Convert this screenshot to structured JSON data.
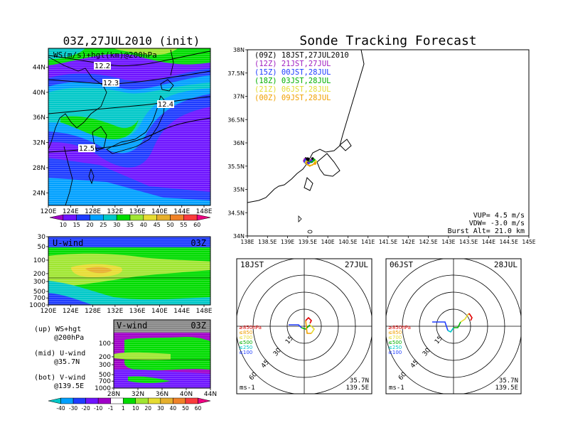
{
  "chart_data": [
    {
      "type": "heatmap",
      "panel": "ws-hgt-200hPa",
      "title": "03Z,27JUL2010 (init)",
      "label": "WS(m/s)+hgt(km)@200hPa",
      "x_ticks": [
        "120E",
        "124E",
        "128E",
        "132E",
        "136E",
        "140E",
        "144E",
        "148E"
      ],
      "y_ticks": [
        "24N",
        "28N",
        "32N",
        "36N",
        "40N",
        "44N"
      ],
      "xlim": [
        120,
        150
      ],
      "ylim": [
        22,
        47
      ],
      "contour_labels": [
        "12.2",
        "12.3",
        "12.4",
        "12.5"
      ],
      "colorbar_levels": [
        "10",
        "15",
        "20",
        "25",
        "30",
        "35",
        "40",
        "45",
        "50",
        "55",
        "60"
      ]
    },
    {
      "type": "heatmap",
      "panel": "u-wind-section",
      "label": "U-wind",
      "time": "03Z",
      "x_ticks": [
        "120E",
        "124E",
        "128E",
        "132E",
        "136E",
        "140E",
        "144E",
        "148E"
      ],
      "y_ticks": [
        "30",
        "50",
        "100",
        "200",
        "300",
        "500",
        "700",
        "1000"
      ]
    },
    {
      "type": "heatmap",
      "panel": "v-wind-section",
      "label": "V-wind",
      "time": "03Z",
      "x_ticks": [
        "28N",
        "32N",
        "36N",
        "40N",
        "44N"
      ],
      "y_ticks": [
        "100",
        "200",
        "300",
        "500",
        "700",
        "1000"
      ],
      "colorbar_levels": [
        "-40",
        "-30",
        "-20",
        "-10",
        "-1",
        "1",
        "10",
        "20",
        "30",
        "40",
        "50",
        "60"
      ]
    },
    {
      "type": "line",
      "panel": "sonde-tracking-map",
      "title": "Sonde Tracking Forecast",
      "x_ticks": [
        "138E",
        "138.5E",
        "139E",
        "139.5E",
        "140E",
        "140.5E",
        "141E",
        "141.5E",
        "142E",
        "142.5E",
        "143E",
        "143.5E",
        "144E",
        "144.5E",
        "145E"
      ],
      "y_ticks": [
        "34N",
        "34.5N",
        "35N",
        "35.5N",
        "36N",
        "36.5N",
        "37N",
        "37.5N",
        "38N"
      ],
      "xlim": [
        138,
        145
      ],
      "ylim": [
        34,
        38
      ],
      "series": [
        {
          "name": "(09Z) 18JST,27JUL2010",
          "color": "#000000",
          "x": [
            139.5,
            139.45,
            139.4,
            139.45,
            139.55,
            139.62
          ],
          "y": [
            35.65,
            35.68,
            35.62,
            35.56,
            35.58,
            35.66
          ]
        },
        {
          "name": "(12Z) 21JST,27JUL",
          "color": "#a020c0",
          "x": [
            139.5,
            139.42,
            139.4,
            139.5,
            139.58
          ],
          "y": [
            35.65,
            35.66,
            35.6,
            35.56,
            35.62
          ]
        },
        {
          "name": "(15Z) 00JST,28JUL",
          "color": "#1e3cff",
          "x": [
            139.5,
            139.44,
            139.42,
            139.52,
            139.6
          ],
          "y": [
            35.65,
            35.64,
            35.58,
            35.55,
            35.6
          ]
        },
        {
          "name": "(18Z) 03JST,28JUL",
          "color": "#00b000",
          "x": [
            139.5,
            139.55,
            139.6,
            139.66
          ],
          "y": [
            35.65,
            35.6,
            35.58,
            35.63
          ]
        },
        {
          "name": "(21Z) 06JST,28JUL",
          "color": "#e6dc32",
          "x": [
            139.5,
            139.44,
            139.5,
            139.62,
            139.7
          ],
          "y": [
            35.65,
            35.58,
            35.52,
            35.52,
            35.6
          ]
        },
        {
          "name": "(00Z) 09JST,28JUL",
          "color": "#f0a000",
          "x": [
            139.5,
            139.46,
            139.55,
            139.68
          ],
          "y": [
            35.65,
            35.56,
            35.5,
            35.56
          ]
        }
      ]
    },
    {
      "type": "line",
      "panel": "hodograph-left",
      "time": "18JST",
      "date": "27JUL",
      "rings": [
        "15",
        "30",
        "45",
        "60"
      ],
      "layers": [
        "≥850hPa",
        "≤850",
        "≤700",
        "≤500",
        "≤250",
        "≤100"
      ],
      "layer_colors": [
        "#e00000",
        "#f0a000",
        "#e6dc32",
        "#00b000",
        "#00c8c8",
        "#1e3cff"
      ],
      "units": "ms-1",
      "location_lat": "35.7N",
      "location_lon": "139.5E"
    },
    {
      "type": "line",
      "panel": "hodograph-right",
      "time": "06JST",
      "date": "28JUL",
      "rings": [
        "15",
        "30",
        "45",
        "60"
      ],
      "layers": [
        "≥850hPa",
        "≤850",
        "≤700",
        "≤500",
        "≤250",
        "≤100"
      ],
      "layer_colors": [
        "#e00000",
        "#f0a000",
        "#e6dc32",
        "#00b000",
        "#00c8c8",
        "#1e3cff"
      ],
      "units": "ms-1",
      "location_lat": "35.7N",
      "location_lon": "139.5E"
    }
  ],
  "map_info": {
    "vup": "VUP= 4.5 m/s",
    "vdw": "VDW= -3.0 m/s",
    "burst": "Burst Alt= 21.0 km"
  },
  "side_legend": {
    "up": "(up) WS+hgt",
    "up2": "@200hPa",
    "mid": "(mid) U-wind",
    "mid2": "@35.7N",
    "bot": "(bot) V-wind",
    "bot2": "@139.5E"
  },
  "colors": {
    "ws": [
      "#a000c8",
      "#6e14ff",
      "#1e3cff",
      "#00a0ff",
      "#00c8c8",
      "#00dc00",
      "#a0e632",
      "#e6dc32",
      "#e6af2d",
      "#f08228",
      "#fa3c3c",
      "#f00082"
    ],
    "diverging": [
      "#00c8c8",
      "#00a0ff",
      "#1e3cff",
      "#6e14ff",
      "#a000c8",
      "#ffffff",
      "#00dc00",
      "#a0e632",
      "#e6dc32",
      "#e6af2d",
      "#f08228",
      "#fa3c3c",
      "#f00082"
    ]
  }
}
